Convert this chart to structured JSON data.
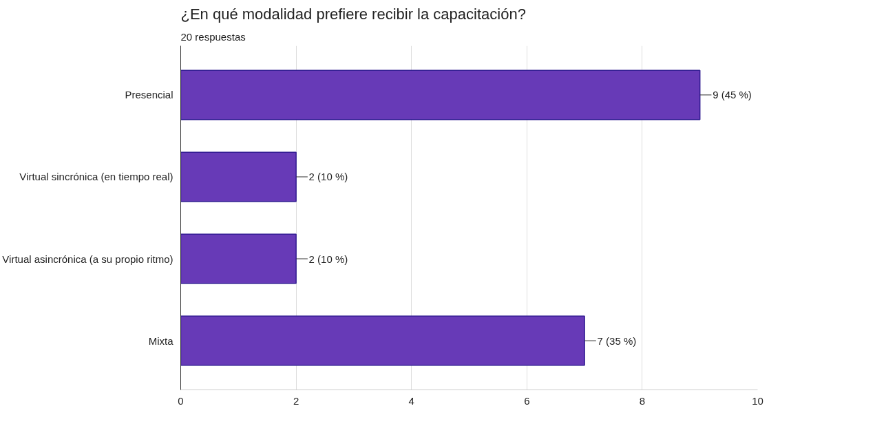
{
  "chart_data": {
    "type": "bar",
    "orientation": "horizontal",
    "title": "¿En qué modalidad prefiere recibir la capacitación?",
    "subtitle": "20 respuestas",
    "categories": [
      "Presencial",
      "Virtual sincrónica (en tiempo real)",
      "Virtual asincrónica (a su propio ritmo)",
      "Mixta"
    ],
    "values": [
      9,
      2,
      2,
      7
    ],
    "color": "#673ab7",
    "value_labels": [
      "9 (45 %)",
      "2 (10 %)",
      "2 (10 %)",
      "7 (35 %)"
    ],
    "xlim": [
      0,
      10
    ],
    "xticks": [
      0,
      2,
      4,
      6,
      8,
      10
    ],
    "grid": "x"
  }
}
